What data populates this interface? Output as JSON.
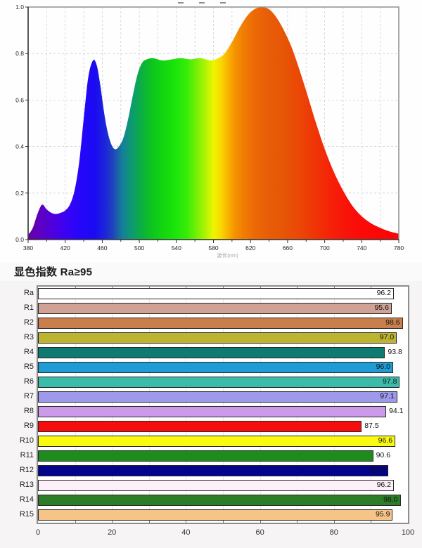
{
  "heading": {
    "text": "显色指数 Ra≥95"
  },
  "chart_data": [
    {
      "id": "spectrum",
      "type": "area",
      "title": "",
      "xlabel": "波长(nm)",
      "ylabel": "",
      "xlim": [
        380,
        780
      ],
      "ylim": [
        0.0,
        1.0
      ],
      "grid": true,
      "grid_style": "dashed light-gray, vertical every 20 nm, horizontal every 0.2",
      "legend_position": "none",
      "x_ticks_labeled": [
        380,
        420,
        460,
        500,
        540,
        580,
        620,
        660,
        700,
        740,
        780
      ],
      "x_minor_step": 20,
      "y_ticks": [
        0.0,
        0.2,
        0.4,
        0.6,
        0.8,
        1.0
      ],
      "series": [
        {
          "name": "relative spectral power",
          "x": [
            380,
            385,
            390,
            395,
            400,
            405,
            410,
            415,
            420,
            425,
            430,
            435,
            440,
            445,
            450,
            454,
            458,
            463,
            468,
            473,
            478,
            483,
            488,
            493,
            498,
            503,
            508,
            515,
            525,
            535,
            545,
            555,
            565,
            572,
            578,
            585,
            592,
            600,
            608,
            616,
            624,
            632,
            640,
            648,
            656,
            664,
            672,
            680,
            690,
            700,
            710,
            720,
            730,
            740,
            750,
            760,
            770,
            780
          ],
          "y": [
            0.02,
            0.05,
            0.11,
            0.15,
            0.13,
            0.115,
            0.11,
            0.115,
            0.125,
            0.15,
            0.21,
            0.33,
            0.52,
            0.7,
            0.77,
            0.75,
            0.66,
            0.52,
            0.43,
            0.39,
            0.4,
            0.44,
            0.52,
            0.62,
            0.71,
            0.76,
            0.775,
            0.78,
            0.77,
            0.775,
            0.78,
            0.775,
            0.78,
            0.775,
            0.77,
            0.78,
            0.8,
            0.85,
            0.91,
            0.96,
            0.99,
            1.0,
            0.99,
            0.955,
            0.9,
            0.83,
            0.74,
            0.64,
            0.51,
            0.39,
            0.29,
            0.21,
            0.145,
            0.1,
            0.07,
            0.05,
            0.035,
            0.025
          ]
        }
      ],
      "fill": "wavelength rainbow gradient",
      "gradient_stops": [
        [
          380,
          "#6600a6"
        ],
        [
          395,
          "#5c00c4"
        ],
        [
          410,
          "#4a00e4"
        ],
        [
          425,
          "#3404f6"
        ],
        [
          440,
          "#2207fa"
        ],
        [
          452,
          "#1b0bf2"
        ],
        [
          462,
          "#1c22dc"
        ],
        [
          472,
          "#1e46bc"
        ],
        [
          482,
          "#168098"
        ],
        [
          492,
          "#0d9a70"
        ],
        [
          502,
          "#0bae44"
        ],
        [
          512,
          "#0dc122"
        ],
        [
          525,
          "#12d510"
        ],
        [
          540,
          "#1ce60a"
        ],
        [
          552,
          "#3cec08"
        ],
        [
          563,
          "#7cf006"
        ],
        [
          572,
          "#b4f402"
        ],
        [
          580,
          "#ecf400"
        ],
        [
          587,
          "#f8dc00"
        ],
        [
          594,
          "#f8bc00"
        ],
        [
          602,
          "#f69600"
        ],
        [
          612,
          "#f17e02"
        ],
        [
          624,
          "#ec6a06"
        ],
        [
          638,
          "#e85e08"
        ],
        [
          655,
          "#e65606"
        ],
        [
          672,
          "#ea4806"
        ],
        [
          690,
          "#f03406"
        ],
        [
          710,
          "#f61e08"
        ],
        [
          735,
          "#fa0c08"
        ],
        [
          760,
          "#fd0606"
        ],
        [
          780,
          "#fe0404"
        ]
      ]
    },
    {
      "id": "cri",
      "type": "bar",
      "orientation": "horizontal",
      "title": "",
      "xlabel": "",
      "ylabel": "",
      "xlim": [
        0,
        100
      ],
      "x_ticks": [
        0,
        20,
        40,
        60,
        80,
        100
      ],
      "grid_minor_step": 10,
      "legend_position": "none",
      "categories": [
        "Ra",
        "R1",
        "R2",
        "R3",
        "R4",
        "R5",
        "R6",
        "R7",
        "R8",
        "R9",
        "R10",
        "R11",
        "R12",
        "R13",
        "R14",
        "R15"
      ],
      "values": [
        96.2,
        95.6,
        98.6,
        97.0,
        93.8,
        96.0,
        97.8,
        97.1,
        94.1,
        87.5,
        96.6,
        90.6,
        94.6,
        96.2,
        98.0,
        95.9
      ],
      "bar_colors": [
        "#ffffff",
        "#cfa295",
        "#c97f4b",
        "#bdb431",
        "#0e7b73",
        "#1f9cd3",
        "#3bbcab",
        "#9e99ea",
        "#cb9be9",
        "#f60d0d",
        "#fbfb0f",
        "#1d8c1d",
        "#03038c",
        "#fceff9",
        "#2c7c28",
        "#f7c488"
      ]
    }
  ]
}
